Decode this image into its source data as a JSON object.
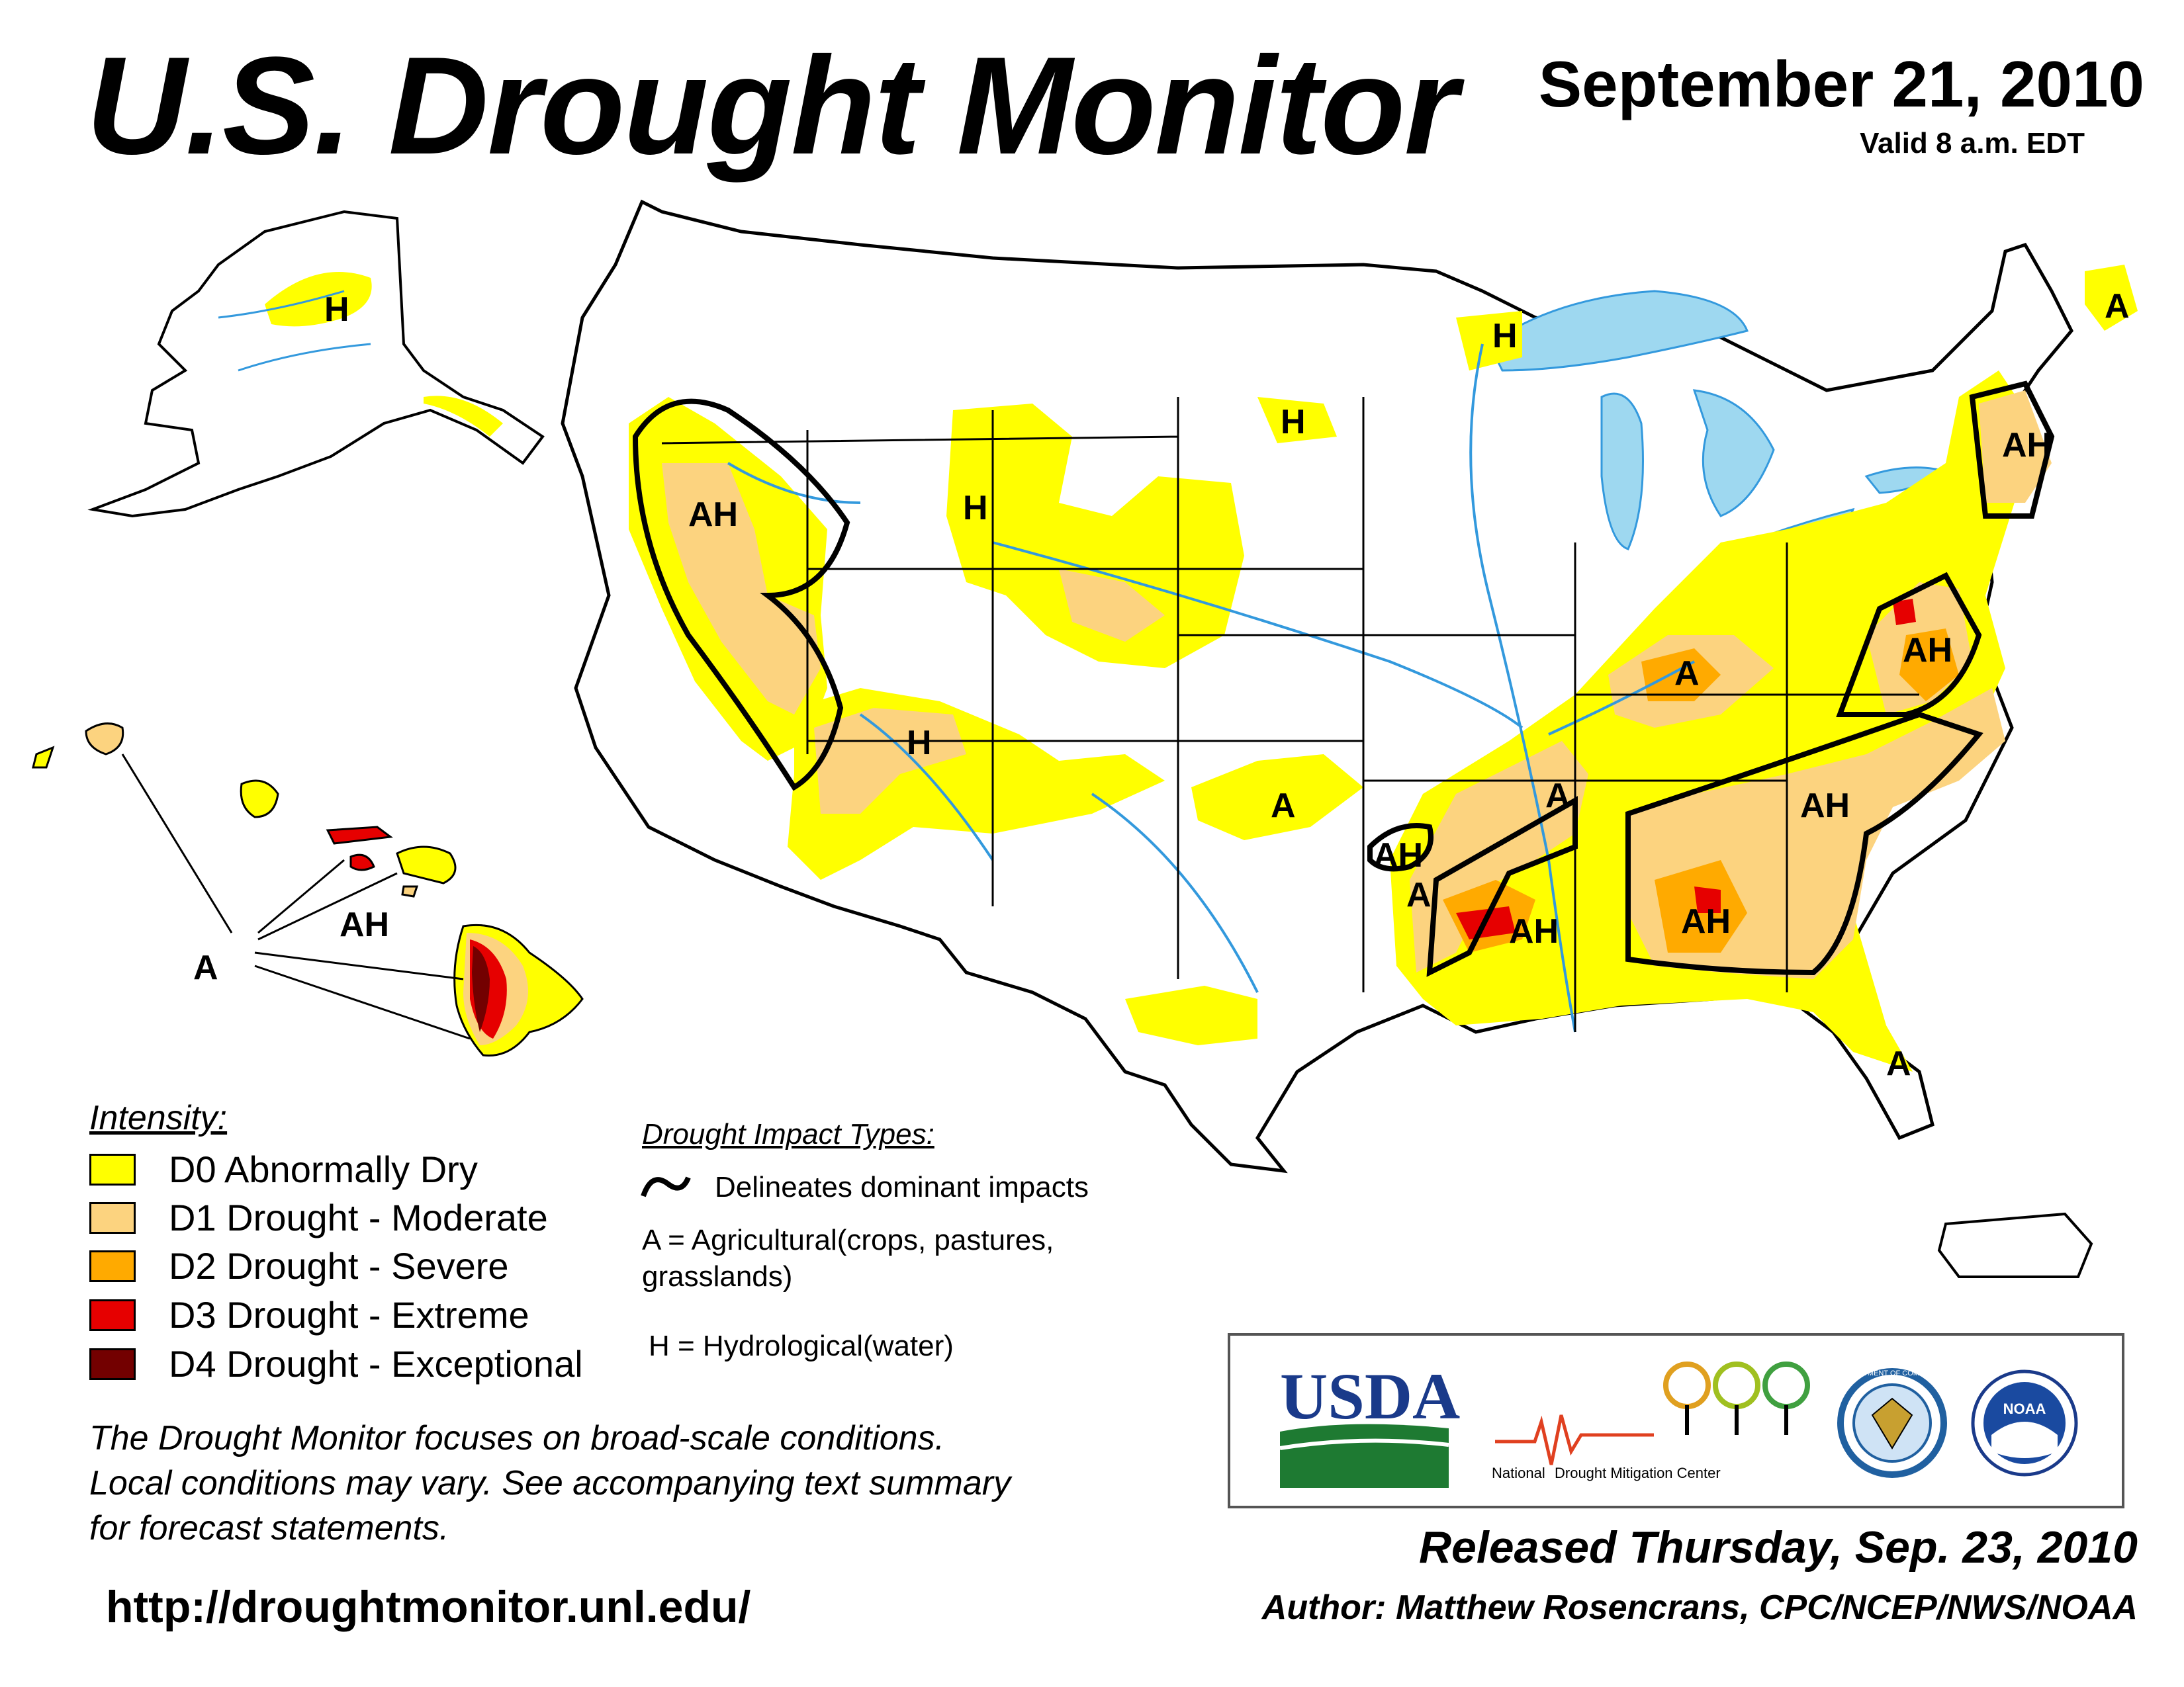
{
  "header": {
    "title": "U.S. Drought Monitor",
    "date": "September 21, 2010",
    "valid": "Valid 8 a.m. EDT"
  },
  "legend": {
    "title": "Intensity:",
    "items": [
      {
        "label": "D0 Abnormally Dry",
        "color": "#FFFF00"
      },
      {
        "label": "D1 Drought - Moderate",
        "color": "#FCD37F"
      },
      {
        "label": "D2 Drought - Severe",
        "color": "#FFAA00"
      },
      {
        "label": "D3 Drought - Extreme",
        "color": "#E60000"
      },
      {
        "label": "D4 Drought - Exceptional",
        "color": "#730000"
      }
    ]
  },
  "impacts": {
    "title": "Drought Impact Types:",
    "delineates": "Delineates dominant impacts",
    "agricultural_line1": "A = Agricultural(crops, pastures,",
    "agricultural_line2": "grasslands)",
    "hydrological": "H = Hydrological(water)"
  },
  "map_labels": {
    "alaska_h": "H",
    "hawaii_ah": "AH",
    "hawaii_a": "A",
    "west_ah": "AH",
    "rockies_h": "H",
    "four_corners_h": "H",
    "dakota_h": "H",
    "superior_h": "H",
    "maine_a": "A",
    "new_england_ah": "AH",
    "midatlantic_ah": "AH",
    "ohio_valley_a": "A",
    "oklahoma_a": "A",
    "ozark_ah": "AH",
    "arkansas_a": "A",
    "texas_a": "A",
    "louisiana_ah": "AH",
    "georgia_ah": "AH",
    "carolina_ah": "AH",
    "florida_a": "A"
  },
  "footnote": {
    "line1": "The Drought Monitor focuses on broad-scale conditions.",
    "line2": "Local conditions may vary. See accompanying text summary",
    "line3": "for forecast statements."
  },
  "url": "http://droughtmonitor.unl.edu/",
  "logos": {
    "usda": "USDA",
    "ndmc_part1": "National",
    "ndmc_part2": "Drought Mitigation Center",
    "commerce_seal": "DEPARTMENT OF COMMERCE",
    "noaa": "NOAA"
  },
  "footer": {
    "released": "Released Thursday, Sep. 23, 2010",
    "author": "Author: Matthew Rosencrans, CPC/NCEP/NWS/NOAA"
  }
}
